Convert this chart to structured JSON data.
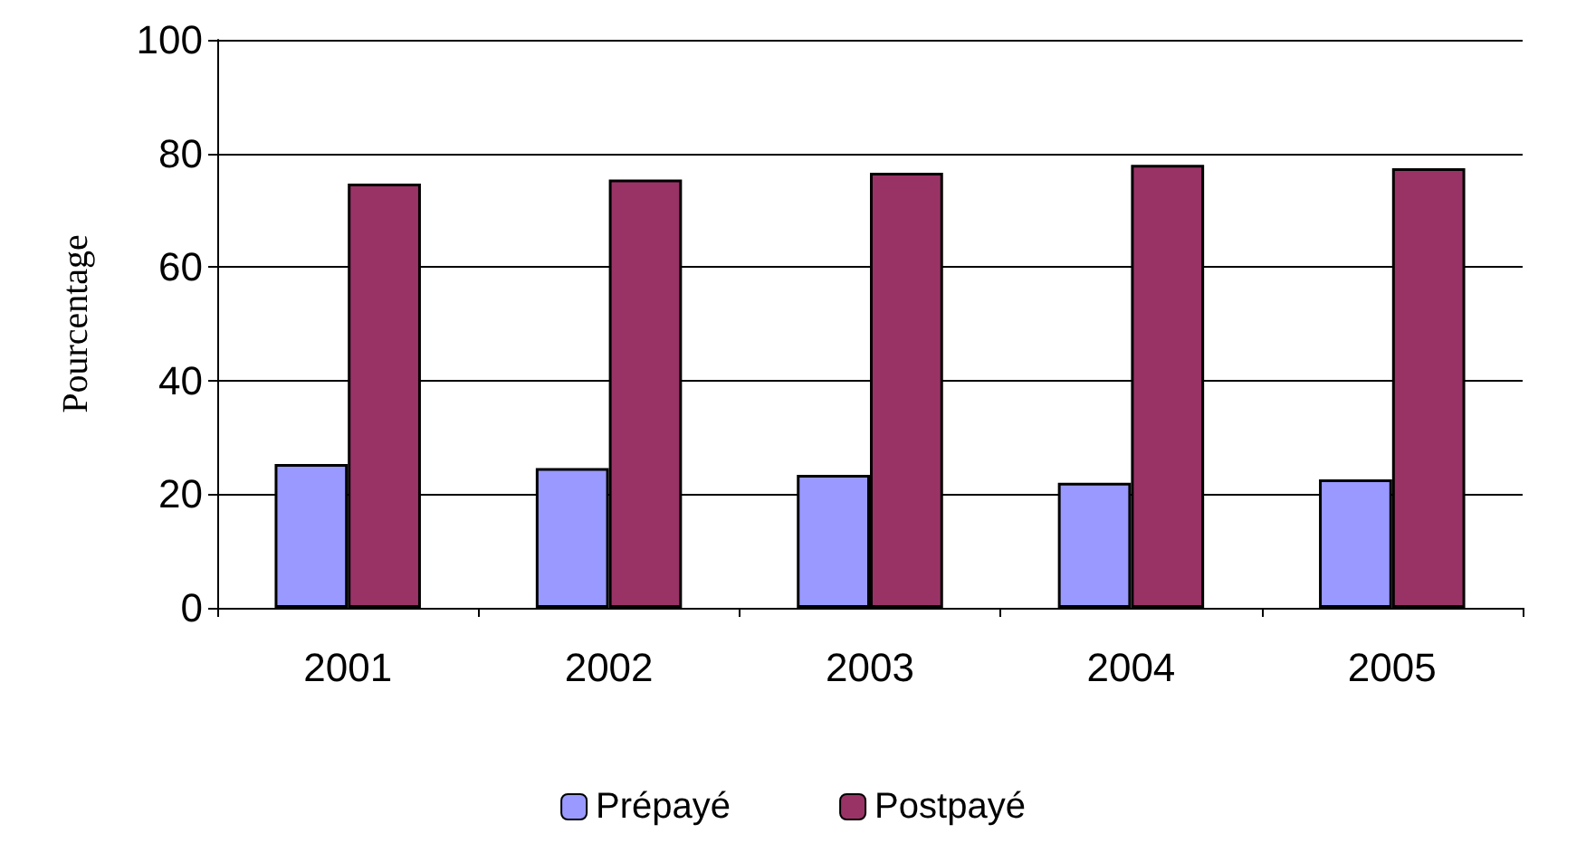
{
  "chart_data": {
    "type": "bar",
    "ylabel": "Pourcentage",
    "categories": [
      "2001",
      "2002",
      "2003",
      "2004",
      "2005"
    ],
    "series": [
      {
        "name": "Prépayé",
        "color": "#9999ff",
        "values": [
          25.3,
          24.6,
          23.4,
          22.0,
          22.6
        ]
      },
      {
        "name": "Postpayé",
        "color": "#993366",
        "values": [
          74.7,
          75.4,
          76.6,
          78.0,
          77.4
        ]
      }
    ],
    "ylim": [
      0,
      100
    ],
    "yticks": [
      0,
      20,
      40,
      60,
      80,
      100
    ],
    "grid": "y",
    "legend": "bottom"
  }
}
